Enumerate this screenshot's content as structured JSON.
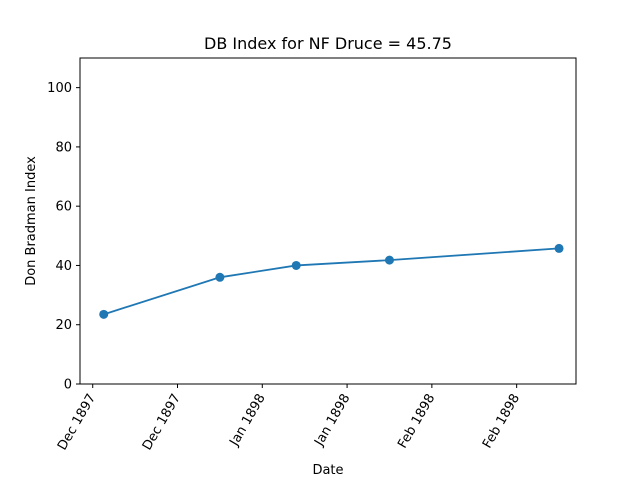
{
  "chart_data": {
    "type": "line",
    "title": "DB Index for NF Druce = 45.75",
    "xlabel": "Date",
    "ylabel": "Don Bradman Index",
    "ylim": [
      0,
      110
    ],
    "yticks": [
      0,
      20,
      40,
      60,
      80,
      100
    ],
    "x_ticks": [
      {
        "label": "Dec 1897",
        "pos": 0.0
      },
      {
        "label": "Dec 1897",
        "pos": 1.0
      },
      {
        "label": "Jan 1898",
        "pos": 2.0
      },
      {
        "label": "Jan 1898",
        "pos": 3.0
      },
      {
        "label": "Feb 1898",
        "pos": 4.0
      },
      {
        "label": "Feb 1898",
        "pos": 5.0
      }
    ],
    "xlim": [
      -0.15,
      5.7
    ],
    "series": [
      {
        "name": "DB Index",
        "color": "#1f77b4",
        "x": [
          0.13,
          1.5,
          2.4,
          3.5,
          5.5
        ],
        "values": [
          23.5,
          36.0,
          40.0,
          41.8,
          45.75
        ]
      }
    ]
  }
}
